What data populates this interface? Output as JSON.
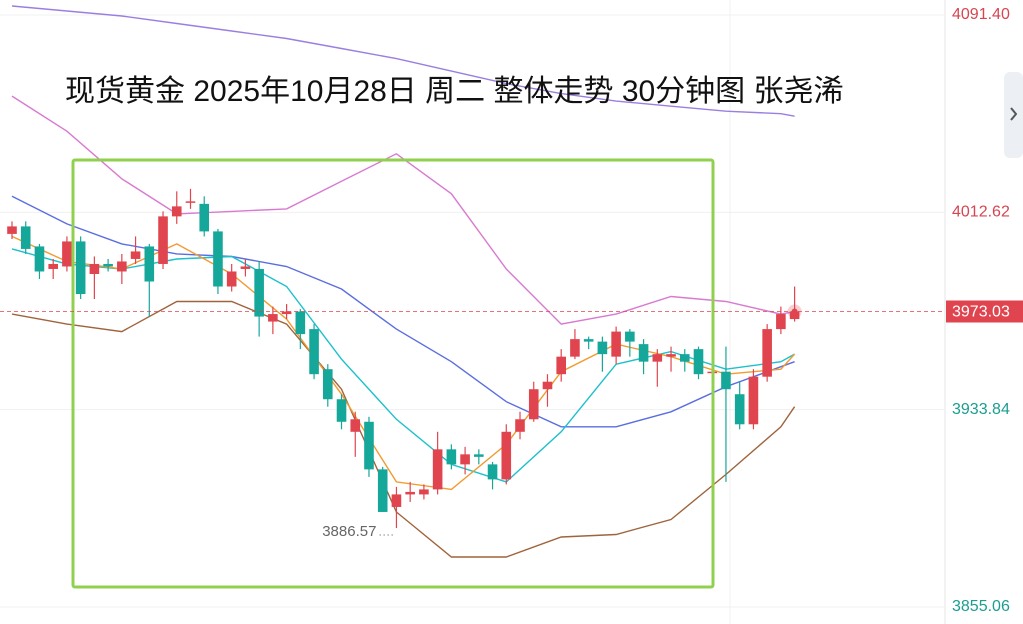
{
  "chart_data": {
    "type": "candlestick",
    "title": "现货黄金 2025年10月28日 周二 整体走势 30分钟图 张尧浠",
    "ylim": [
      3848.27,
      4097.38
    ],
    "yticks": [
      {
        "value": 4091.4,
        "label": "4091.40"
      },
      4012.62,
      3933.84,
      3855.06
    ],
    "last_price": 3973.03,
    "low_annotation": 3886.57,
    "up_color": "#e0454f",
    "down_color": "#16a79b",
    "open": [
      4004,
      4007,
      3999,
      3990,
      3991,
      4001,
      3988,
      3992,
      3989,
      3994,
      3999,
      3992,
      4011,
      4017,
      4016,
      4005,
      3983,
      3990,
      3990,
      3969,
      3972,
      3973,
      3966,
      3950,
      3938,
      3925,
      3929,
      3910,
      3895,
      3900,
      3900,
      3902,
      3918,
      3912,
      3916,
      3912,
      3906,
      3925,
      3930,
      3942,
      3948,
      3955,
      3962,
      3961,
      3955,
      3965,
      3960,
      3953,
      3955,
      3956,
      3958,
      3949,
      3949,
      3940,
      3928,
      3947,
      3966,
      3970
    ],
    "high": [
      4009,
      4009,
      4000,
      3994,
      4003,
      4003,
      3995,
      3994,
      3996,
      4003,
      4000,
      4013,
      4021,
      4022,
      4019,
      4006,
      3992,
      3994,
      3993,
      3975,
      3976,
      3974,
      3968,
      3952,
      3940,
      3933,
      3931,
      3911,
      3903,
      3905,
      3904,
      3925,
      3920,
      3919,
      3918,
      3913,
      3928,
      3933,
      3945,
      3948,
      3958,
      3966,
      3963,
      3963,
      3967,
      3966,
      3962,
      3958,
      3959,
      3958,
      3959,
      3951,
      3959,
      3945,
      3950,
      3968,
      3975,
      3983
    ],
    "low": [
      4002,
      3996,
      3986,
      3986,
      3989,
      3978,
      3978,
      3989,
      3984,
      3992,
      3971,
      3990,
      4008,
      4014,
      4003,
      3980,
      3981,
      3987,
      3963,
      3964,
      3970,
      3958,
      3946,
      3935,
      3926,
      3915,
      3907,
      3893,
      3886.57,
      3897,
      3898,
      3900,
      3910,
      3908,
      3912,
      3902,
      3904,
      3922,
      3929,
      3935,
      3945,
      3954,
      3958,
      3949,
      3952,
      3955,
      3948,
      3943,
      3949,
      3949,
      3946,
      3946,
      3905,
      3926,
      3926,
      3945,
      3964,
      3969
    ],
    "close": [
      4007,
      3998,
      3989,
      3992,
      4001,
      3980,
      3992,
      3991,
      3993,
      3997,
      3985,
      4011,
      4015,
      4017,
      4005,
      3983,
      3989,
      3991,
      3971,
      3972,
      3973,
      3964,
      3948,
      3938,
      3929,
      3930,
      3910,
      3893,
      3900,
      3901,
      3902,
      3918,
      3912,
      3916,
      3915,
      3906,
      3925,
      3930,
      3942,
      3945,
      3955,
      3962,
      3961,
      3956,
      3965,
      3961,
      3953,
      3956,
      3956,
      3953,
      3948,
      3949,
      3942,
      3928,
      3947,
      3966,
      3972,
      3973.03
    ],
    "overlays": [
      {
        "color": "#9b7fe0",
        "x": [
          0,
          4,
          8,
          12,
          16,
          20,
          24,
          28,
          32,
          36,
          40,
          44,
          48,
          52,
          56,
          57
        ],
        "values": [
          4095,
          4093,
          4091,
          4088,
          4085,
          4082,
          4078,
          4074,
          4069,
          4064,
          4060,
          4057,
          4055,
          4053,
          4052,
          4051
        ]
      },
      {
        "color": "#d97ad0",
        "x": [
          0,
          4,
          8,
          12,
          16,
          20,
          24,
          28,
          32,
          36,
          40,
          44,
          48,
          52,
          56,
          57
        ],
        "values": [
          4059,
          4045,
          4026,
          4012,
          4013,
          4014,
          4025,
          4036,
          4020,
          3990,
          3968,
          3972,
          3979,
          3977,
          3972,
          3973
        ]
      },
      {
        "color": "#a0643c",
        "x": [
          0,
          4,
          8,
          12,
          16,
          20,
          24,
          28,
          32,
          36,
          40,
          44,
          48,
          52,
          56,
          57
        ],
        "values": [
          3972,
          3968,
          3965,
          3977,
          3977,
          3968,
          3942,
          3893,
          3875,
          3875,
          3883,
          3884,
          3890,
          3908,
          3927,
          3935
        ]
      },
      {
        "color": "#5a6ee0",
        "x": [
          0,
          4,
          8,
          12,
          16,
          20,
          24,
          28,
          32,
          36,
          40,
          44,
          48,
          52,
          56,
          57
        ],
        "values": [
          4019,
          4008,
          4000,
          3996,
          3995,
          3991,
          3982,
          3966,
          3953,
          3937,
          3927,
          3927,
          3933,
          3943,
          3951,
          3953
        ]
      },
      {
        "color": "#1cc0cc",
        "x": [
          0,
          4,
          8,
          12,
          16,
          20,
          24,
          28,
          32,
          36,
          40,
          44,
          48,
          52,
          56,
          57
        ],
        "values": [
          3998,
          3992,
          3990,
          3994,
          3995,
          3983,
          3954,
          3930,
          3912,
          3905,
          3925,
          3952,
          3957,
          3950,
          3953,
          3956
        ]
      },
      {
        "color": "#f39a2e",
        "x": [
          0,
          4,
          8,
          12,
          16,
          20,
          24,
          28,
          32,
          36,
          40,
          44,
          48,
          52,
          56,
          57
        ],
        "values": [
          4003,
          3993,
          3990,
          4000,
          3988,
          3970,
          3940,
          3905,
          3902,
          3920,
          3949,
          3960,
          3955,
          3948,
          3950,
          3956
        ]
      }
    ]
  }
}
